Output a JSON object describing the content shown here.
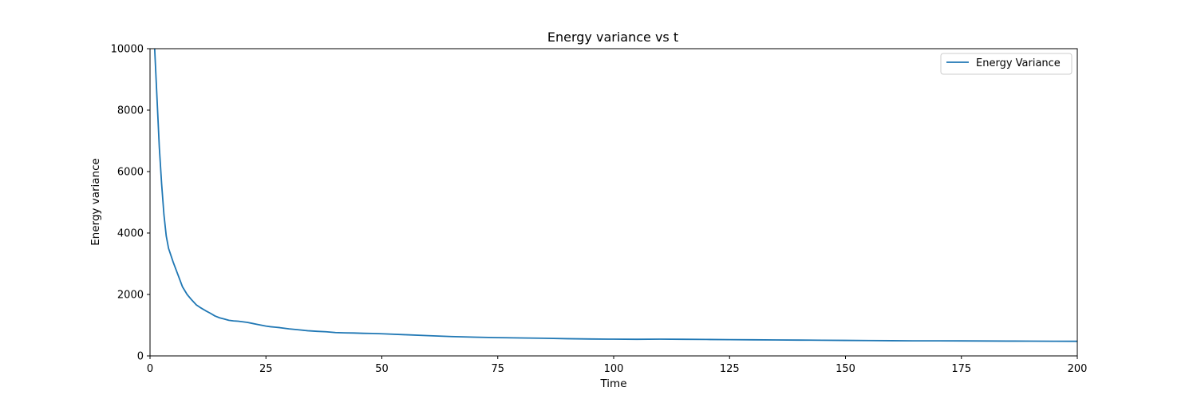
{
  "chart_data": {
    "type": "line",
    "title": "Energy variance vs t",
    "xlabel": "Time",
    "ylabel": "Energy variance",
    "xlim": [
      0,
      200
    ],
    "ylim": [
      0,
      10000
    ],
    "xticks": [
      0,
      25,
      50,
      75,
      100,
      125,
      150,
      175,
      200
    ],
    "yticks": [
      0,
      2000,
      4000,
      6000,
      8000,
      10000
    ],
    "grid": false,
    "legend_position": "top-right",
    "colors": {
      "series": "#1f77b4",
      "axes": "#000000",
      "legend_border": "#cccccc"
    },
    "series": [
      {
        "name": "Energy Variance",
        "x": [
          1,
          1.5,
          2,
          2.5,
          3,
          3.5,
          4,
          5,
          6,
          7,
          8,
          9,
          10,
          11,
          12,
          13,
          14,
          15,
          16,
          17,
          18,
          19,
          20,
          21,
          22,
          23,
          24,
          25,
          26,
          27,
          28,
          29,
          30,
          32,
          34,
          36,
          38,
          40,
          42,
          44,
          46,
          48,
          50,
          55,
          60,
          65,
          70,
          75,
          80,
          85,
          90,
          95,
          100,
          105,
          110,
          115,
          120,
          125,
          130,
          135,
          140,
          145,
          150,
          155,
          160,
          165,
          170,
          175,
          180,
          185,
          190,
          195,
          200
        ],
        "y": [
          10000,
          8400,
          6800,
          5600,
          4600,
          3900,
          3500,
          3050,
          2650,
          2250,
          2000,
          1820,
          1660,
          1560,
          1470,
          1390,
          1300,
          1240,
          1200,
          1160,
          1140,
          1130,
          1110,
          1090,
          1060,
          1030,
          1000,
          970,
          950,
          935,
          920,
          900,
          880,
          850,
          820,
          800,
          785,
          760,
          750,
          745,
          735,
          730,
          720,
          690,
          660,
          630,
          610,
          595,
          585,
          575,
          560,
          550,
          545,
          540,
          545,
          540,
          535,
          530,
          525,
          520,
          515,
          510,
          505,
          500,
          495,
          490,
          490,
          488,
          485,
          482,
          480,
          478,
          475
        ]
      }
    ]
  }
}
